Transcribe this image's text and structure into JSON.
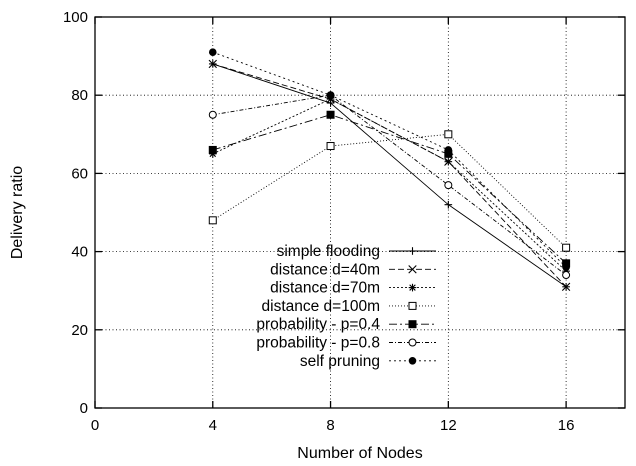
{
  "chart_data": {
    "type": "line",
    "title": "",
    "xlabel": "Number of Nodes",
    "ylabel": "Delivery ratio",
    "xlim": [
      0,
      18
    ],
    "ylim": [
      0,
      100
    ],
    "xticks": [
      0,
      4,
      8,
      12,
      16
    ],
    "yticks": [
      0,
      20,
      40,
      60,
      80,
      100
    ],
    "grid": true,
    "legend_position": "bottom-center",
    "x": [
      4,
      8,
      12,
      16
    ],
    "series": [
      {
        "name": "simple flooding",
        "marker": "plus",
        "dash": "",
        "values": [
          88,
          78,
          52,
          31
        ]
      },
      {
        "name": "distance d=40m",
        "marker": "cross",
        "dash": "6 3",
        "values": [
          88,
          79,
          63,
          31
        ]
      },
      {
        "name": "distance d=70m",
        "marker": "star",
        "dash": "2 2",
        "values": [
          65,
          79,
          63,
          35
        ]
      },
      {
        "name": "distance d=100m",
        "marker": "open-square",
        "dash": "1 2",
        "values": [
          48,
          67,
          70,
          41
        ]
      },
      {
        "name": "probability - p=0.4",
        "marker": "filled-square",
        "dash": "8 3 2 3",
        "values": [
          66,
          75,
          65,
          37
        ]
      },
      {
        "name": "probability - p=0.8",
        "marker": "open-circle",
        "dash": "4 2 1 2",
        "values": [
          75,
          80,
          57,
          34
        ]
      },
      {
        "name": "self pruning",
        "marker": "filled-circle",
        "dash": "2 3",
        "values": [
          91,
          80,
          66,
          36
        ]
      }
    ]
  }
}
